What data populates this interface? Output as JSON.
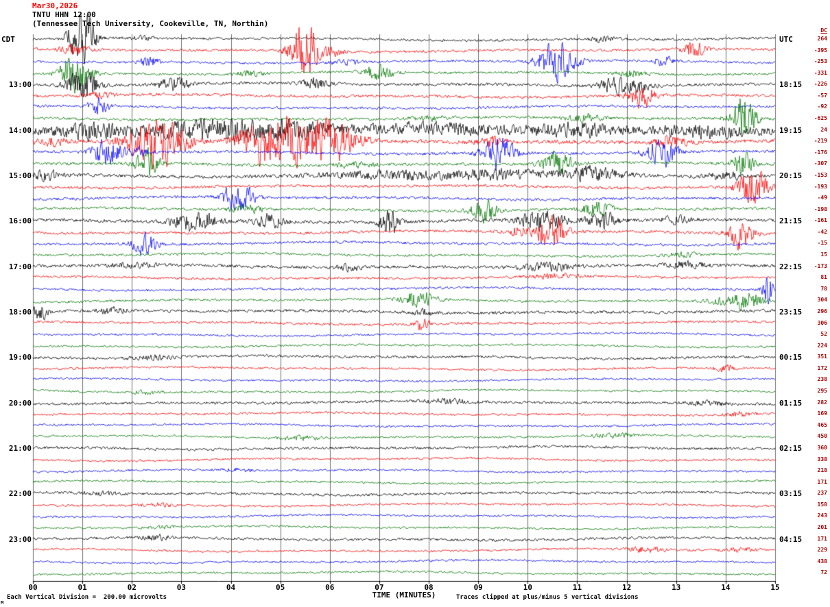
{
  "header": {
    "date": "Mar30,2026",
    "station_line": "TNTU HHN 12:00",
    "description": "(Tennessee Tech University, Cookeville, TN, Northin)",
    "left_tz": "CDT",
    "right_tz": "UTC",
    "dc_header": "DC"
  },
  "footer": {
    "x_axis_title": "TIME (MINUTES)",
    "scale_note": "Each Vertical Division =  200.00 microvolts",
    "clip_note": "Traces clipped at plus/minus 5 vertical divisions",
    "corner_mark": "M"
  },
  "chart_data": {
    "type": "line",
    "subtype": "helicorder-seismogram",
    "title": "Mar30,2026 TNTU HHN 12:00 (Tennessee Tech University, Cookeville, TN, Northin)",
    "xlabel": "TIME (MINUTES)",
    "x_ticks": [
      "00",
      "01",
      "02",
      "03",
      "04",
      "05",
      "06",
      "07",
      "08",
      "09",
      "10",
      "11",
      "12",
      "13",
      "14",
      "15"
    ],
    "x_range_minutes": [
      0,
      15
    ],
    "minutes_per_line": 15,
    "row_count": 48,
    "left_time_axis_label": "CDT",
    "right_time_axis_label": "UTC",
    "left_hour_labels": [
      "13:00",
      "14:00",
      "15:00",
      "16:00",
      "17:00",
      "18:00",
      "19:00",
      "20:00",
      "21:00",
      "22:00",
      "23:00"
    ],
    "right_hour_labels": [
      "18:15",
      "19:15",
      "20:15",
      "21:15",
      "22:15",
      "23:15",
      "00:15",
      "01:15",
      "02:15",
      "03:15",
      "04:15"
    ],
    "dc_column_header": "DC",
    "microvolts_per_division": 200.0,
    "clip_divisions": 5,
    "trace_color_cycle": [
      "black",
      "red",
      "blue",
      "green"
    ],
    "colors": {
      "black": "#000000",
      "red": "#ff0000",
      "blue": "#0000ff",
      "green": "#007700"
    },
    "bursts_format": "[minute_position, amplitude_px, width_minutes]",
    "rows": [
      {
        "color": "black",
        "left": "",
        "right": "",
        "dc": 264,
        "noise": 2.2,
        "bursts": [
          [
            1.02,
            50,
            0.22
          ],
          [
            0.75,
            12,
            0.15
          ],
          [
            11.55,
            5,
            0.25
          ],
          [
            2.2,
            3,
            0.3
          ]
        ]
      },
      {
        "color": "red",
        "left": "",
        "right": "",
        "dc": -395,
        "noise": 2.4,
        "bursts": [
          [
            5.5,
            50,
            0.3
          ],
          [
            0.8,
            8,
            0.3
          ],
          [
            13.35,
            12,
            0.25
          ],
          [
            6.1,
            6,
            0.2
          ]
        ]
      },
      {
        "color": "blue",
        "left": "",
        "right": "",
        "dc": -253,
        "noise": 2.2,
        "bursts": [
          [
            2.35,
            10,
            0.18
          ],
          [
            10.6,
            40,
            0.35
          ],
          [
            12.75,
            8,
            0.2
          ],
          [
            6.3,
            4,
            0.3
          ]
        ]
      },
      {
        "color": "green",
        "left": "",
        "right": "",
        "dc": -331,
        "noise": 2.2,
        "bursts": [
          [
            0.85,
            32,
            0.3
          ],
          [
            7.0,
            14,
            0.3
          ],
          [
            4.4,
            5,
            0.3
          ],
          [
            12.1,
            6,
            0.3
          ]
        ]
      },
      {
        "color": "black",
        "left": "13:00",
        "right": "18:15",
        "dc": -226,
        "noise": 2.6,
        "bursts": [
          [
            1.0,
            26,
            0.3
          ],
          [
            2.85,
            12,
            0.3
          ],
          [
            5.7,
            10,
            0.25
          ],
          [
            11.8,
            16,
            0.35
          ],
          [
            12.4,
            12,
            0.2
          ]
        ]
      },
      {
        "color": "red",
        "left": "",
        "right": "",
        "dc": -57,
        "noise": 2.6,
        "bursts": [
          [
            12.3,
            22,
            0.25
          ],
          [
            1.3,
            5,
            0.3
          ]
        ]
      },
      {
        "color": "blue",
        "left": "",
        "right": "",
        "dc": -92,
        "noise": 2.3,
        "bursts": [
          [
            1.35,
            15,
            0.2
          ]
        ]
      },
      {
        "color": "green",
        "left": "",
        "right": "",
        "dc": -625,
        "noise": 2.4,
        "bursts": [
          [
            14.35,
            40,
            0.25
          ],
          [
            11.2,
            6,
            0.4
          ],
          [
            8.0,
            4,
            0.4
          ]
        ]
      },
      {
        "color": "black",
        "left": "14:00",
        "right": "19:15",
        "dc": 24,
        "noise": 7.0,
        "bursts": [
          [
            3.5,
            14,
            1.2
          ],
          [
            5.2,
            12,
            0.8
          ],
          [
            1.2,
            10,
            0.6
          ],
          [
            8.2,
            6,
            1.5
          ],
          [
            10.9,
            10,
            0.7
          ],
          [
            13.6,
            8,
            0.8
          ]
        ]
      },
      {
        "color": "red",
        "left": "",
        "right": "",
        "dc": -219,
        "noise": 3.5,
        "bursts": [
          [
            2.5,
            45,
            0.55
          ],
          [
            4.7,
            45,
            0.5
          ],
          [
            6.0,
            40,
            0.5
          ],
          [
            5.3,
            30,
            0.3
          ],
          [
            9.3,
            8,
            0.3
          ],
          [
            12.9,
            10,
            0.3
          ],
          [
            0.4,
            6,
            0.3
          ]
        ]
      },
      {
        "color": "blue",
        "left": "",
        "right": "",
        "dc": -176,
        "noise": 2.6,
        "bursts": [
          [
            1.5,
            26,
            0.3
          ],
          [
            9.4,
            30,
            0.3
          ],
          [
            12.7,
            26,
            0.3
          ],
          [
            2.2,
            8,
            0.2
          ]
        ]
      },
      {
        "color": "green",
        "left": "",
        "right": "",
        "dc": -307,
        "noise": 2.6,
        "bursts": [
          [
            2.3,
            26,
            0.25
          ],
          [
            10.6,
            20,
            0.3
          ],
          [
            14.35,
            22,
            0.2
          ],
          [
            6.5,
            4,
            0.4
          ]
        ]
      },
      {
        "color": "black",
        "left": "15:00",
        "right": "20:15",
        "dc": -153,
        "noise": 3.2,
        "bursts": [
          [
            0.3,
            8,
            0.3
          ],
          [
            7.6,
            7,
            1.6
          ],
          [
            11.3,
            12,
            0.6
          ],
          [
            9.5,
            8,
            0.8
          ],
          [
            14.0,
            6,
            0.4
          ]
        ]
      },
      {
        "color": "red",
        "left": "",
        "right": "",
        "dc": -193,
        "noise": 2.6,
        "bursts": [
          [
            14.55,
            30,
            0.3
          ]
        ]
      },
      {
        "color": "blue",
        "left": "",
        "right": "",
        "dc": -49,
        "noise": 2.5,
        "bursts": [
          [
            4.15,
            26,
            0.3
          ]
        ]
      },
      {
        "color": "green",
        "left": "",
        "right": "",
        "dc": -198,
        "noise": 2.5,
        "bursts": [
          [
            9.1,
            20,
            0.25
          ],
          [
            11.4,
            12,
            0.3
          ],
          [
            4.3,
            8,
            0.3
          ]
        ]
      },
      {
        "color": "black",
        "left": "16:00",
        "right": "21:15",
        "dc": -161,
        "noise": 3.0,
        "bursts": [
          [
            3.3,
            18,
            0.45
          ],
          [
            4.75,
            12,
            0.3
          ],
          [
            7.2,
            26,
            0.18
          ],
          [
            10.3,
            24,
            0.4
          ],
          [
            11.5,
            16,
            0.3
          ],
          [
            13.0,
            6,
            0.3
          ]
        ]
      },
      {
        "color": "red",
        "left": "",
        "right": "",
        "dc": -42,
        "noise": 2.6,
        "bursts": [
          [
            10.45,
            30,
            0.3
          ],
          [
            14.3,
            26,
            0.25
          ],
          [
            9.8,
            8,
            0.2
          ]
        ]
      },
      {
        "color": "blue",
        "left": "",
        "right": "",
        "dc": -15,
        "noise": 2.4,
        "bursts": [
          [
            2.25,
            18,
            0.25
          ]
        ]
      },
      {
        "color": "green",
        "left": "",
        "right": "",
        "dc": 15,
        "noise": 2.2,
        "bursts": [
          [
            13.1,
            4,
            0.3
          ]
        ]
      },
      {
        "color": "black",
        "left": "17:00",
        "right": "22:15",
        "dc": -173,
        "noise": 2.8,
        "bursts": [
          [
            6.4,
            6,
            0.25
          ],
          [
            10.4,
            7,
            0.5
          ],
          [
            13.2,
            6,
            0.4
          ],
          [
            2.0,
            4,
            0.5
          ]
        ]
      },
      {
        "color": "red",
        "left": "",
        "right": "",
        "dc": 81,
        "noise": 2.3,
        "bursts": [
          [
            10.5,
            4,
            0.5
          ]
        ]
      },
      {
        "color": "blue",
        "left": "",
        "right": "",
        "dc": 78,
        "noise": 2.2,
        "bursts": [
          [
            14.85,
            30,
            0.1
          ]
        ]
      },
      {
        "color": "green",
        "left": "",
        "right": "",
        "dc": 304,
        "noise": 2.2,
        "bursts": [
          [
            7.8,
            14,
            0.35
          ],
          [
            14.45,
            16,
            0.3
          ],
          [
            13.9,
            6,
            0.3
          ]
        ]
      },
      {
        "color": "black",
        "left": "18:00",
        "right": "23:15",
        "dc": 296,
        "noise": 2.7,
        "bursts": [
          [
            0.15,
            14,
            0.15
          ],
          [
            1.6,
            5,
            0.3
          ],
          [
            7.9,
            6,
            0.2
          ]
        ]
      },
      {
        "color": "red",
        "left": "",
        "right": "",
        "dc": 306,
        "noise": 2.3,
        "bursts": [
          [
            7.85,
            10,
            0.15
          ]
        ]
      },
      {
        "color": "blue",
        "left": "",
        "right": "",
        "dc": 52,
        "noise": 1.9,
        "bursts": []
      },
      {
        "color": "green",
        "left": "",
        "right": "",
        "dc": 224,
        "noise": 1.9,
        "bursts": []
      },
      {
        "color": "black",
        "left": "19:00",
        "right": "00:15",
        "dc": 351,
        "noise": 2.4,
        "bursts": [
          [
            2.4,
            3,
            0.5
          ]
        ]
      },
      {
        "color": "red",
        "left": "",
        "right": "",
        "dc": 172,
        "noise": 2.0,
        "bursts": [
          [
            13.95,
            6,
            0.2
          ]
        ]
      },
      {
        "color": "blue",
        "left": "",
        "right": "",
        "dc": 238,
        "noise": 1.9,
        "bursts": []
      },
      {
        "color": "green",
        "left": "",
        "right": "",
        "dc": 295,
        "noise": 1.9,
        "bursts": [
          [
            2.3,
            3,
            0.3
          ]
        ]
      },
      {
        "color": "black",
        "left": "20:00",
        "right": "01:15",
        "dc": 282,
        "noise": 2.4,
        "bursts": [
          [
            8.4,
            4,
            0.5
          ],
          [
            13.6,
            4,
            0.4
          ]
        ]
      },
      {
        "color": "red",
        "left": "",
        "right": "",
        "dc": 169,
        "noise": 2.0,
        "bursts": [
          [
            14.3,
            4,
            0.3
          ]
        ]
      },
      {
        "color": "blue",
        "left": "",
        "right": "",
        "dc": 465,
        "noise": 1.9,
        "bursts": []
      },
      {
        "color": "green",
        "left": "",
        "right": "",
        "dc": 450,
        "noise": 1.9,
        "bursts": [
          [
            5.4,
            4,
            0.4
          ],
          [
            11.7,
            4,
            0.4
          ]
        ]
      },
      {
        "color": "black",
        "left": "21:00",
        "right": "02:15",
        "dc": 360,
        "noise": 2.4,
        "bursts": []
      },
      {
        "color": "red",
        "left": "",
        "right": "",
        "dc": 338,
        "noise": 2.0,
        "bursts": []
      },
      {
        "color": "blue",
        "left": "",
        "right": "",
        "dc": 218,
        "noise": 1.9,
        "bursts": [
          [
            4.1,
            3,
            0.3
          ]
        ]
      },
      {
        "color": "green",
        "left": "",
        "right": "",
        "dc": 171,
        "noise": 1.9,
        "bursts": []
      },
      {
        "color": "black",
        "left": "22:00",
        "right": "03:15",
        "dc": 237,
        "noise": 2.4,
        "bursts": [
          [
            1.4,
            3,
            0.4
          ]
        ]
      },
      {
        "color": "red",
        "left": "",
        "right": "",
        "dc": 158,
        "noise": 2.0,
        "bursts": [
          [
            2.5,
            4,
            0.3
          ]
        ]
      },
      {
        "color": "blue",
        "left": "",
        "right": "",
        "dc": 243,
        "noise": 1.9,
        "bursts": []
      },
      {
        "color": "green",
        "left": "",
        "right": "",
        "dc": 201,
        "noise": 1.9,
        "bursts": [
          [
            2.6,
            3,
            0.3
          ]
        ]
      },
      {
        "color": "black",
        "left": "23:00",
        "right": "04:15",
        "dc": 171,
        "noise": 2.4,
        "bursts": [
          [
            2.5,
            4,
            0.3
          ]
        ]
      },
      {
        "color": "red",
        "left": "",
        "right": "",
        "dc": 229,
        "noise": 2.0,
        "bursts": [
          [
            12.4,
            5,
            0.4
          ],
          [
            14.3,
            4,
            0.3
          ]
        ]
      },
      {
        "color": "blue",
        "left": "",
        "right": "",
        "dc": 438,
        "noise": 1.9,
        "bursts": []
      },
      {
        "color": "green",
        "left": "",
        "right": "",
        "dc": 72,
        "noise": 1.9,
        "bursts": []
      }
    ]
  }
}
